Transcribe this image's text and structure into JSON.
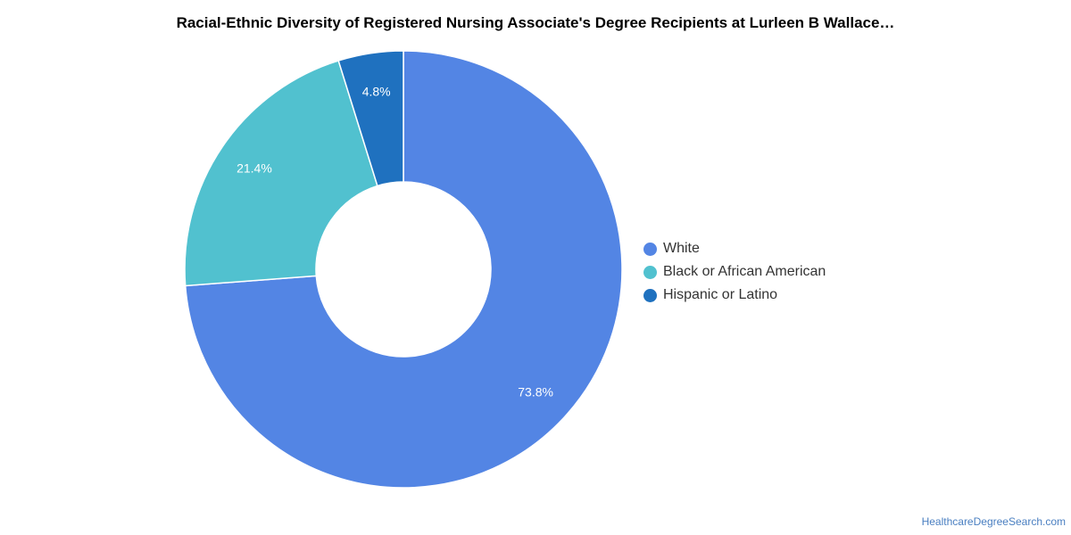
{
  "chart_data": {
    "type": "pie",
    "title": "Racial-Ethnic Diversity of Registered Nursing Associate's Degree Recipients at Lurleen B Wallace…",
    "donut": true,
    "legend_position": "right",
    "slices": [
      {
        "name": "White",
        "value": 73.8,
        "label": "73.8%",
        "color": "#5385e4"
      },
      {
        "name": "Black or African American",
        "value": 21.4,
        "label": "21.4%",
        "color": "#51c1cf"
      },
      {
        "name": "Hispanic or Latino",
        "value": 4.8,
        "label": "4.8%",
        "color": "#1f71bf"
      }
    ]
  },
  "footer": {
    "source": "HealthcareDegreeSearch.com"
  }
}
